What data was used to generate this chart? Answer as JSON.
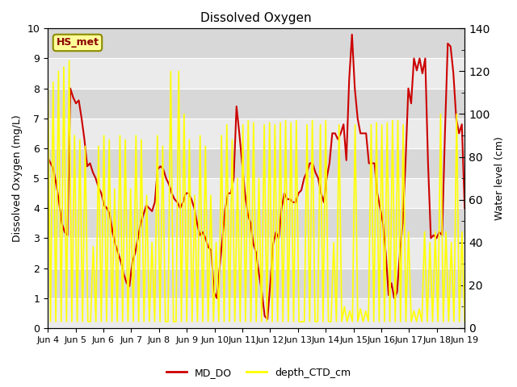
{
  "title": "Dissolved Oxygen",
  "ylabel_left": "Dissolved Oxygen (mg/L)",
  "ylabel_right": "Water level (cm)",
  "ylim_left": [
    0.0,
    10.0
  ],
  "ylim_right": [
    0,
    140
  ],
  "yticks_left": [
    0.0,
    1.0,
    2.0,
    3.0,
    4.0,
    5.0,
    6.0,
    7.0,
    8.0,
    9.0,
    10.0
  ],
  "yticks_right": [
    0,
    20,
    40,
    60,
    80,
    100,
    120,
    140
  ],
  "yticks_right_minor": [
    10,
    30,
    50,
    70,
    90,
    110,
    130
  ],
  "xtick_labels": [
    "Jun 4",
    "Jun 5",
    "Jun 6",
    "Jun 7",
    "Jun 8",
    "Jun 9",
    "Jun 10",
    "Jun 11",
    "Jun 12",
    "Jun 13",
    "Jun 14",
    "Jun 15",
    "Jun 16",
    "Jun 17",
    "Jun 18",
    "Jun 19"
  ],
  "legend_label_red": "MD_DO",
  "legend_label_yellow": "depth_CTD_cm",
  "annotation_text": "HS_met",
  "annotation_color": "#8B0000",
  "annotation_bg": "#FFFF99",
  "annotation_edge": "#8B8B00",
  "line_color_red": "#CC0000",
  "line_color_yellow": "#FFFF00",
  "background_color": "#D8D8D8",
  "band_light": "#EBEBEB",
  "band_dark": "#D8D8D8",
  "md_do": [
    5.7,
    5.5,
    5.3,
    4.8,
    4.2,
    3.5,
    3.2,
    3.1,
    8.0,
    7.7,
    7.5,
    7.6,
    7.0,
    6.3,
    5.4,
    5.5,
    5.2,
    5.0,
    4.7,
    4.5,
    4.1,
    4.0,
    3.8,
    3.2,
    2.8,
    2.5,
    2.2,
    1.8,
    1.5,
    1.4,
    2.2,
    2.5,
    3.0,
    3.5,
    3.8,
    4.1,
    4.0,
    3.9,
    4.2,
    5.3,
    5.4,
    5.3,
    5.0,
    4.8,
    4.5,
    4.3,
    4.2,
    4.0,
    4.2,
    4.5,
    4.5,
    4.3,
    4.0,
    3.5,
    3.1,
    3.2,
    3.0,
    2.7,
    2.6,
    1.2,
    1.0,
    2.0,
    3.0,
    4.0,
    4.5,
    4.5,
    5.0,
    7.4,
    6.5,
    5.5,
    4.5,
    3.8,
    3.5,
    2.8,
    2.5,
    1.8,
    1.2,
    0.4,
    0.3,
    1.5,
    2.8,
    3.2,
    3.0,
    4.0,
    4.5,
    4.3,
    4.3,
    4.2,
    4.2,
    4.5,
    4.6,
    5.0,
    5.2,
    5.5,
    5.5,
    5.2,
    5.0,
    4.5,
    4.2,
    5.0,
    5.5,
    6.5,
    6.5,
    6.3,
    6.5,
    6.8,
    5.6,
    8.3,
    9.8,
    8.0,
    7.0,
    6.5,
    6.5,
    6.5,
    5.5,
    5.5,
    5.5,
    4.5,
    4.0,
    3.5,
    2.5,
    1.1,
    1.5,
    1.0,
    1.2,
    2.5,
    3.5,
    5.5,
    8.0,
    7.5,
    9.0,
    8.6,
    9.0,
    8.5,
    9.0,
    5.5,
    3.0,
    3.1,
    3.0,
    3.2,
    3.1,
    6.5,
    9.5,
    9.4,
    8.5,
    7.0,
    6.5,
    6.8,
    4.0
  ],
  "depth_ctd": [
    118,
    3,
    115,
    3,
    120,
    3,
    122,
    3,
    125,
    3,
    90,
    3,
    88,
    3,
    85,
    3,
    3,
    38,
    3,
    85,
    3,
    90,
    3,
    88,
    3,
    65,
    3,
    90,
    3,
    88,
    3,
    65,
    3,
    90,
    3,
    88,
    3,
    62,
    3,
    40,
    3,
    90,
    3,
    85,
    3,
    3,
    120,
    3,
    3,
    120,
    3,
    100,
    3,
    88,
    3,
    62,
    3,
    90,
    3,
    85,
    3,
    62,
    3,
    40,
    3,
    90,
    3,
    95,
    3,
    88,
    3,
    70,
    3,
    95,
    3,
    97,
    3,
    96,
    3,
    70,
    3,
    95,
    3,
    96,
    3,
    95,
    3,
    96,
    3,
    97,
    3,
    96,
    3,
    97,
    3,
    3,
    3,
    95,
    3,
    97,
    3,
    3,
    95,
    3,
    97,
    3,
    3,
    40,
    3,
    95,
    3,
    10,
    3,
    8,
    3,
    95,
    3,
    9,
    3,
    8,
    3,
    95,
    3,
    96,
    3,
    95,
    3,
    96,
    3,
    97,
    3,
    97,
    3,
    95,
    3,
    45,
    3,
    8,
    3,
    9,
    3,
    45,
    3,
    40,
    3,
    45,
    3,
    100,
    3,
    45,
    3,
    40,
    3,
    100,
    3,
    45,
    3
  ]
}
